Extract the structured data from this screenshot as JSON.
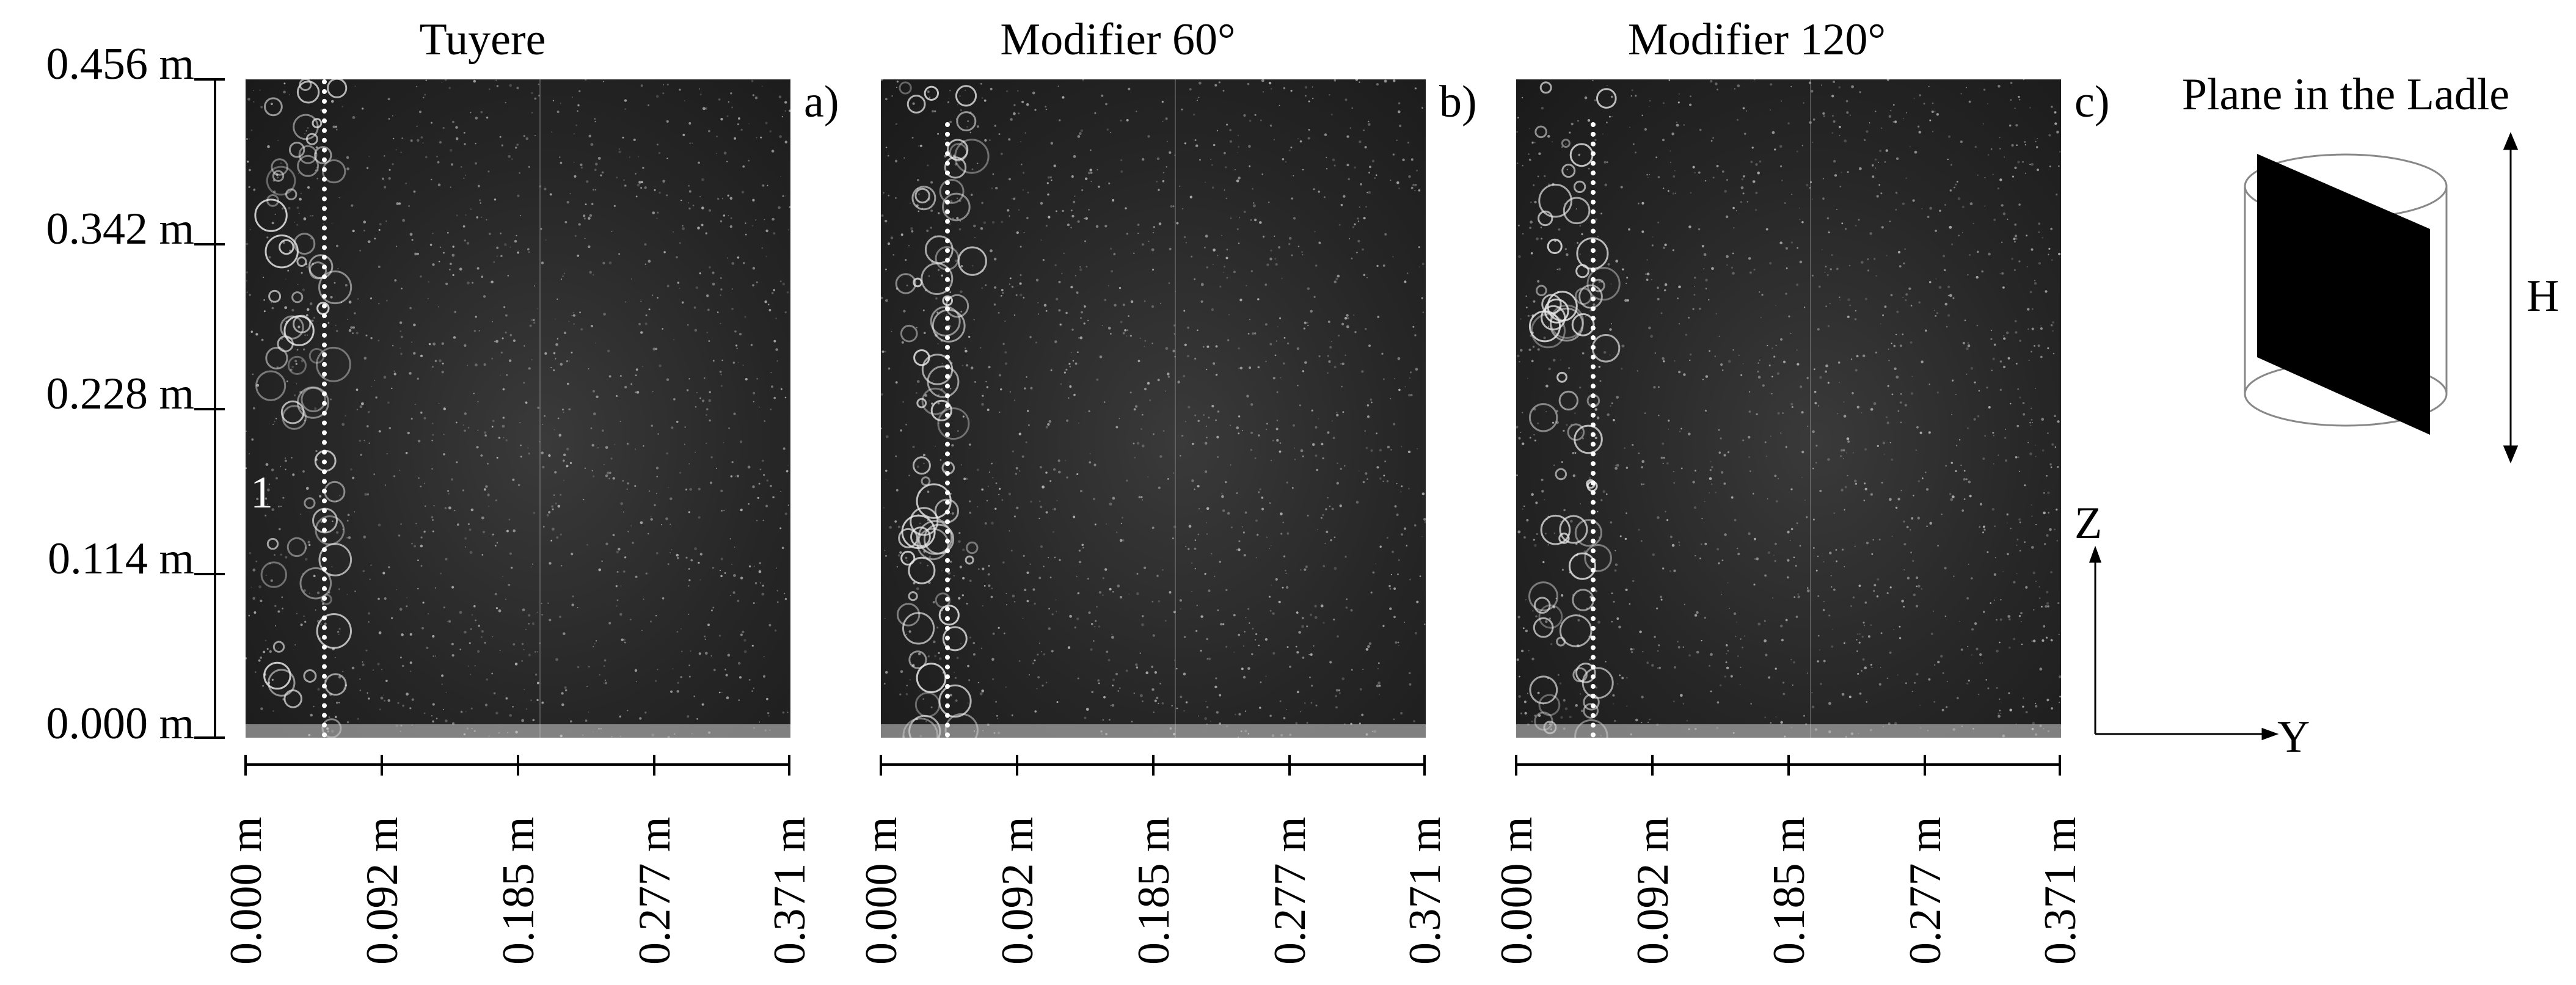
{
  "panels": [
    {
      "title": "Tuyere",
      "tag": "a)",
      "marker": "1"
    },
    {
      "title": "Modifier 60°",
      "tag": "b)",
      "marker": ""
    },
    {
      "title": "Modifier 120°",
      "tag": "c)",
      "marker": ""
    }
  ],
  "y_axis": {
    "ticks": [
      "0.456 m",
      "0.342 m",
      "0.228 m",
      "0.114 m",
      "0.000 m"
    ]
  },
  "x_axis": {
    "ticks": [
      "0.000 m",
      "0.092 m",
      "0.185 m",
      "0.277 m",
      "0.371 m"
    ]
  },
  "ladle": {
    "title": "Plane in the Ladle",
    "height_label": "H"
  },
  "axes_indicator": {
    "z": "Z",
    "y": "Y"
  }
}
